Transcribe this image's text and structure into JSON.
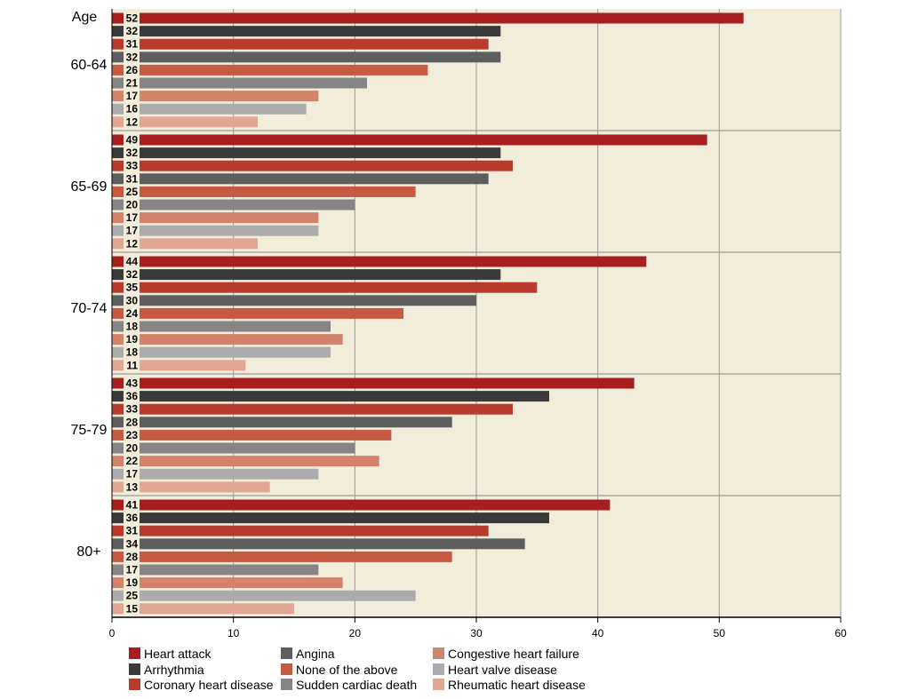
{
  "chart_data": {
    "type": "bar",
    "orientation": "horizontal",
    "title": "",
    "ylabel": "Age",
    "xlabel": "",
    "xlim": [
      0,
      60
    ],
    "xticks": [
      0,
      10,
      20,
      30,
      40,
      50,
      60
    ],
    "grid": true,
    "background": "#f2ecda",
    "legend_position": "bottom",
    "categories": [
      "60-64",
      "65-69",
      "70-74",
      "75-79",
      "80+"
    ],
    "series": [
      {
        "name": "Heart attack",
        "color": "#a81d1d",
        "values": [
          52,
          49,
          44,
          43,
          41
        ]
      },
      {
        "name": "Arrhythmia",
        "color": "#3a3a3a",
        "values": [
          32,
          32,
          32,
          36,
          36
        ]
      },
      {
        "name": "Coronary heart disease",
        "color": "#b83b2e",
        "values": [
          31,
          33,
          35,
          33,
          31
        ]
      },
      {
        "name": "Angina",
        "color": "#5e5e5e",
        "values": [
          32,
          31,
          30,
          28,
          34
        ]
      },
      {
        "name": "None of the above",
        "color": "#c75a43",
        "values": [
          26,
          25,
          24,
          23,
          28
        ]
      },
      {
        "name": "Sudden cardiac death",
        "color": "#858585",
        "values": [
          21,
          20,
          18,
          20,
          17
        ]
      },
      {
        "name": "Congestive heart failure",
        "color": "#d4836a",
        "values": [
          17,
          17,
          19,
          22,
          19
        ]
      },
      {
        "name": "Heart valve disease",
        "color": "#acacac",
        "values": [
          16,
          17,
          18,
          17,
          25
        ]
      },
      {
        "name": "Rheumatic heart disease",
        "color": "#e0a892",
        "values": [
          12,
          12,
          11,
          13,
          15
        ]
      }
    ]
  }
}
